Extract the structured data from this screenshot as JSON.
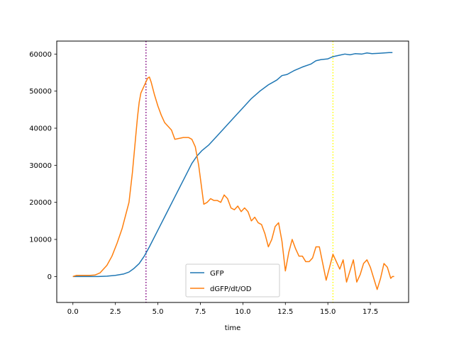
{
  "chart_data": {
    "type": "line",
    "title": "",
    "xlabel": "time",
    "ylabel": "",
    "xlim": [
      -0.95,
      19.75
    ],
    "ylim": [
      -7000,
      63500
    ],
    "x_ticks": [
      0,
      2.5,
      5,
      7.5,
      10,
      12.5,
      15,
      17.5
    ],
    "x_tick_labels": [
      "0.0",
      "2.5",
      "5.0",
      "7.5",
      "10.0",
      "12.5",
      "15.0",
      "17.5"
    ],
    "y_ticks": [
      0,
      10000,
      20000,
      30000,
      40000,
      50000,
      60000
    ],
    "y_tick_labels": [
      "0",
      "10000",
      "20000",
      "30000",
      "40000",
      "50000",
      "60000"
    ],
    "grid": false,
    "legend_position": "lower-center",
    "vlines": [
      {
        "x": 4.3,
        "color": "#800080",
        "style": "dotted"
      },
      {
        "x": 15.3,
        "color": "#ffff00",
        "style": "dotted"
      }
    ],
    "series": [
      {
        "name": "GFP",
        "color": "#1f77b4",
        "points": [
          [
            0,
            0
          ],
          [
            1,
            0
          ],
          [
            1.5,
            0
          ],
          [
            2,
            100
          ],
          [
            2.5,
            300
          ],
          [
            3,
            700
          ],
          [
            3.3,
            1200
          ],
          [
            3.6,
            2200
          ],
          [
            3.9,
            3500
          ],
          [
            4.2,
            5500
          ],
          [
            4.5,
            8000
          ],
          [
            5,
            12500
          ],
          [
            5.5,
            17000
          ],
          [
            6,
            21500
          ],
          [
            6.5,
            26000
          ],
          [
            7,
            30500
          ],
          [
            7.3,
            32500
          ],
          [
            7.6,
            34000
          ],
          [
            8,
            35500
          ],
          [
            8.5,
            38000
          ],
          [
            9,
            40500
          ],
          [
            9.5,
            43000
          ],
          [
            10,
            45500
          ],
          [
            10.5,
            48000
          ],
          [
            11,
            50000
          ],
          [
            11.5,
            51700
          ],
          [
            12,
            53000
          ],
          [
            12.3,
            54200
          ],
          [
            12.6,
            54500
          ],
          [
            13,
            55500
          ],
          [
            13.5,
            56500
          ],
          [
            14,
            57300
          ],
          [
            14.3,
            58200
          ],
          [
            14.6,
            58500
          ],
          [
            15,
            58700
          ],
          [
            15.3,
            59300
          ],
          [
            15.7,
            59700
          ],
          [
            16,
            60000
          ],
          [
            16.3,
            59800
          ],
          [
            16.6,
            60100
          ],
          [
            17,
            60000
          ],
          [
            17.3,
            60300
          ],
          [
            17.6,
            60100
          ],
          [
            18,
            60200
          ],
          [
            18.3,
            60300
          ],
          [
            18.6,
            60400
          ],
          [
            18.8,
            60400
          ]
        ]
      },
      {
        "name": "dGFP/dt/OD",
        "color": "#ff7f0e",
        "points": [
          [
            0,
            0
          ],
          [
            0.2,
            300
          ],
          [
            0.5,
            300
          ],
          [
            1,
            300
          ],
          [
            1.3,
            400
          ],
          [
            1.6,
            1000
          ],
          [
            2,
            3000
          ],
          [
            2.3,
            5500
          ],
          [
            2.6,
            9000
          ],
          [
            2.9,
            13000
          ],
          [
            3.1,
            16500
          ],
          [
            3.3,
            20000
          ],
          [
            3.5,
            28000
          ],
          [
            3.7,
            38000
          ],
          [
            3.8,
            43000
          ],
          [
            3.9,
            47000
          ],
          [
            4,
            49500
          ],
          [
            4.1,
            50500
          ],
          [
            4.2,
            51500
          ],
          [
            4.3,
            52500
          ],
          [
            4.4,
            53500
          ],
          [
            4.5,
            53800
          ],
          [
            4.6,
            52500
          ],
          [
            4.8,
            49000
          ],
          [
            5,
            46000
          ],
          [
            5.2,
            43500
          ],
          [
            5.4,
            41500
          ],
          [
            5.6,
            40500
          ],
          [
            5.8,
            39500
          ],
          [
            6,
            37000
          ],
          [
            6.2,
            37200
          ],
          [
            6.5,
            37500
          ],
          [
            6.8,
            37500
          ],
          [
            7,
            37000
          ],
          [
            7.2,
            35000
          ],
          [
            7.4,
            30000
          ],
          [
            7.6,
            23000
          ],
          [
            7.7,
            19500
          ],
          [
            7.9,
            20000
          ],
          [
            8.1,
            21000
          ],
          [
            8.3,
            20500
          ],
          [
            8.5,
            20500
          ],
          [
            8.7,
            20000
          ],
          [
            8.9,
            22000
          ],
          [
            9.1,
            21000
          ],
          [
            9.3,
            18500
          ],
          [
            9.5,
            18000
          ],
          [
            9.7,
            19000
          ],
          [
            9.9,
            17500
          ],
          [
            10.1,
            18500
          ],
          [
            10.3,
            17500
          ],
          [
            10.5,
            15000
          ],
          [
            10.7,
            16000
          ],
          [
            10.9,
            14500
          ],
          [
            11.1,
            14000
          ],
          [
            11.3,
            11500
          ],
          [
            11.5,
            8000
          ],
          [
            11.7,
            10000
          ],
          [
            11.9,
            13500
          ],
          [
            12.1,
            14500
          ],
          [
            12.3,
            9500
          ],
          [
            12.5,
            1500
          ],
          [
            12.7,
            6500
          ],
          [
            12.9,
            10000
          ],
          [
            13.1,
            7500
          ],
          [
            13.3,
            5500
          ],
          [
            13.5,
            5500
          ],
          [
            13.7,
            4000
          ],
          [
            13.9,
            4000
          ],
          [
            14.1,
            5000
          ],
          [
            14.3,
            8000
          ],
          [
            14.5,
            8000
          ],
          [
            14.7,
            3500
          ],
          [
            14.9,
            -1000
          ],
          [
            15.1,
            2500
          ],
          [
            15.3,
            6000
          ],
          [
            15.5,
            4000
          ],
          [
            15.7,
            2000
          ],
          [
            15.9,
            4500
          ],
          [
            16.1,
            -1500
          ],
          [
            16.3,
            1500
          ],
          [
            16.5,
            4500
          ],
          [
            16.7,
            -1500
          ],
          [
            16.9,
            500
          ],
          [
            17.1,
            3500
          ],
          [
            17.3,
            4500
          ],
          [
            17.5,
            2500
          ],
          [
            17.7,
            -500
          ],
          [
            17.9,
            -3500
          ],
          [
            18.1,
            -500
          ],
          [
            18.3,
            3500
          ],
          [
            18.5,
            2500
          ],
          [
            18.7,
            -500
          ],
          [
            18.8,
            0
          ],
          [
            18.9,
            0
          ]
        ]
      }
    ]
  }
}
